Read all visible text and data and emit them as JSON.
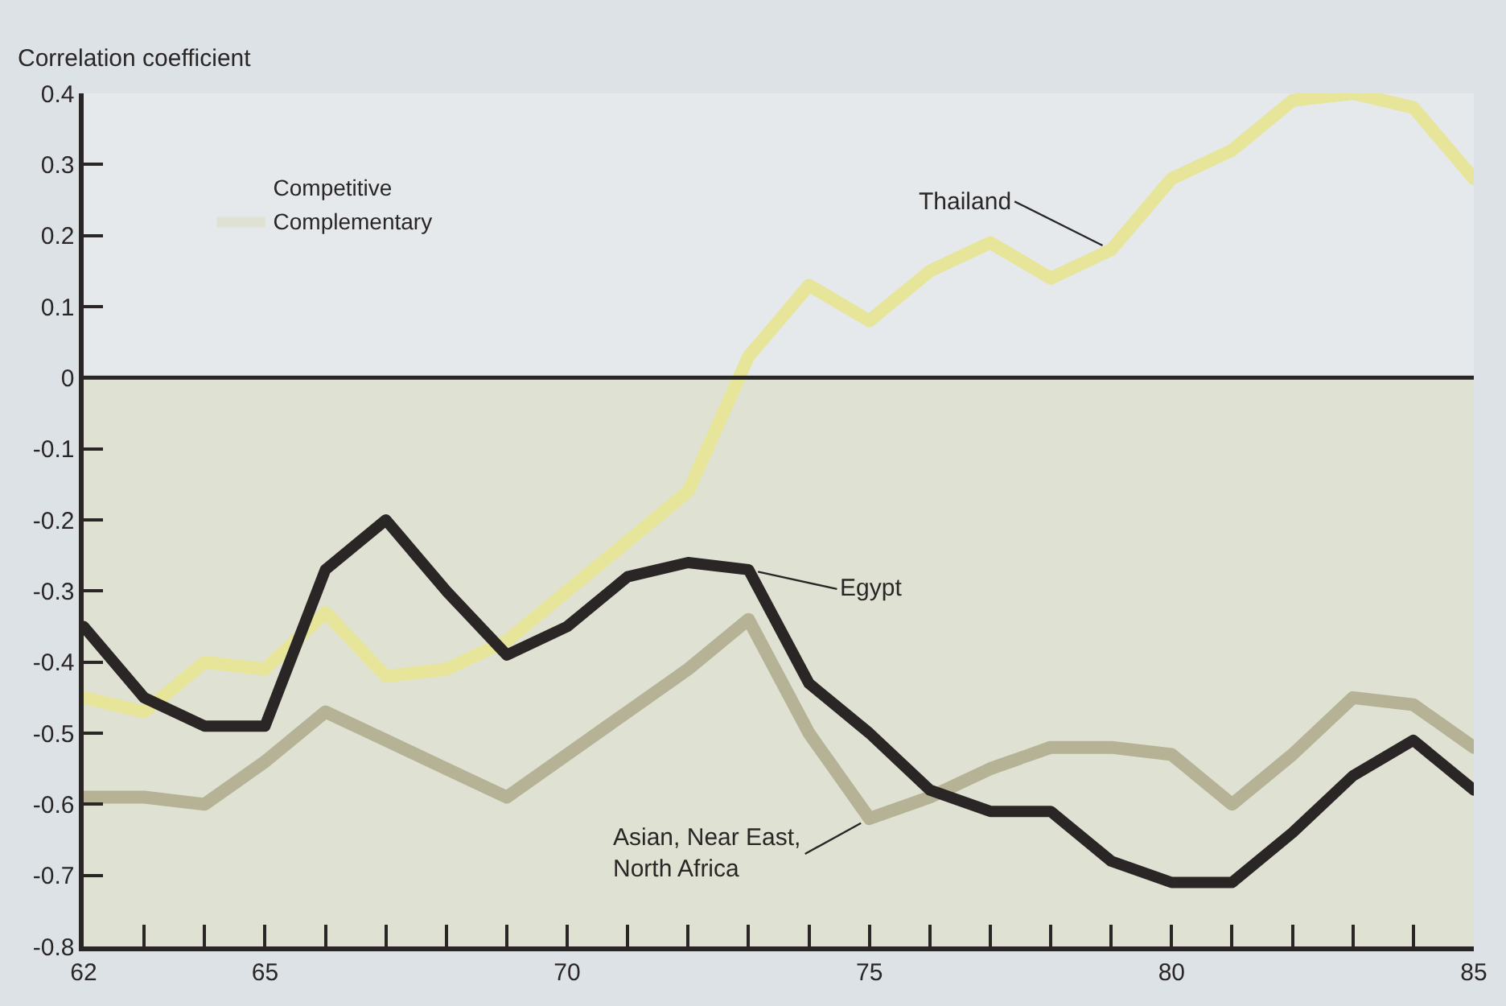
{
  "chart_data": {
    "type": "line",
    "ylabel": "Correlation coefficient",
    "x": [
      62,
      63,
      64,
      65,
      66,
      67,
      68,
      69,
      70,
      71,
      72,
      73,
      74,
      75,
      76,
      77,
      78,
      79,
      80,
      81,
      82,
      83,
      84,
      85
    ],
    "series": [
      {
        "name": "Thailand",
        "color": "#e6e59a",
        "values": [
          -0.45,
          -0.47,
          -0.4,
          -0.41,
          -0.33,
          -0.42,
          -0.41,
          -0.37,
          -0.3,
          -0.23,
          -0.16,
          0.03,
          0.13,
          0.08,
          0.15,
          0.19,
          0.14,
          0.18,
          0.28,
          0.32,
          0.39,
          0.4,
          0.38,
          0.28
        ]
      },
      {
        "name": "Asian, Near East,\nNorth Africa",
        "color": "#b5b295",
        "values": [
          -0.59,
          -0.59,
          -0.6,
          -0.54,
          -0.47,
          -0.51,
          -0.55,
          -0.59,
          -0.53,
          -0.47,
          -0.41,
          -0.34,
          -0.5,
          -0.62,
          -0.59,
          -0.55,
          -0.52,
          -0.52,
          -0.53,
          -0.6,
          -0.53,
          -0.45,
          -0.46,
          -0.52
        ]
      },
      {
        "name": "Egypt",
        "color": "#2b2626",
        "values": [
          -0.35,
          -0.45,
          -0.49,
          -0.49,
          -0.27,
          -0.2,
          -0.3,
          -0.39,
          -0.35,
          -0.28,
          -0.26,
          -0.27,
          -0.43,
          -0.5,
          -0.58,
          -0.61,
          -0.61,
          -0.68,
          -0.71,
          -0.71,
          -0.64,
          -0.56,
          -0.51,
          -0.58
        ]
      }
    ],
    "bands": [
      {
        "axis": "y",
        "from": 0,
        "to": 0.4,
        "label": "Competitive",
        "color": "#e5e9ec"
      },
      {
        "axis": "y",
        "from": -0.8,
        "to": 0,
        "label": "Complementary",
        "color": "#dfe2d3"
      }
    ],
    "ref_lines": [
      {
        "axis": "y",
        "value": 0,
        "color": "#2b2626"
      }
    ],
    "xlim": [
      62,
      85
    ],
    "xticks": [
      62,
      {
        "value": 63,
        "label": null
      },
      {
        "value": 64,
        "label": null
      },
      65,
      {
        "value": 66,
        "label": null
      },
      {
        "value": 67,
        "label": null
      },
      {
        "value": 68,
        "label": null
      },
      {
        "value": 69,
        "label": null
      },
      70,
      {
        "value": 71,
        "label": null
      },
      {
        "value": 72,
        "label": null
      },
      {
        "value": 73,
        "label": null
      },
      {
        "value": 74,
        "label": null
      },
      75,
      {
        "value": 76,
        "label": null
      },
      {
        "value": 77,
        "label": null
      },
      {
        "value": 78,
        "label": null
      },
      {
        "value": 79,
        "label": null
      },
      80,
      {
        "value": 81,
        "label": null
      },
      {
        "value": 82,
        "label": null
      },
      {
        "value": 83,
        "label": null
      },
      {
        "value": 84,
        "label": null
      },
      85
    ],
    "ylim": [
      -0.8,
      0.4
    ],
    "yticks": [
      0.4,
      0.3,
      0.2,
      0.1,
      0,
      -0.1,
      -0.2,
      -0.3,
      -0.4,
      -0.5,
      -0.6,
      -0.7,
      -0.8
    ],
    "legend": "top left",
    "line_style": "solid"
  }
}
